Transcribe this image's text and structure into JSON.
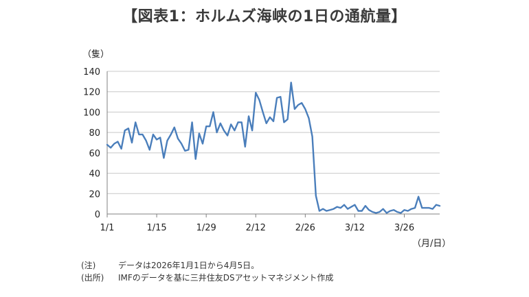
{
  "title": "【図表1：ホルムズ海峡の1日の通航量】",
  "y_unit": "（隻）",
  "x_unit": "（月/日）",
  "notes": [
    {
      "label": "(注)",
      "text": "データは2026年1月1日から4月5日。"
    },
    {
      "label": "(出所)",
      "text": "IMFのデータを基に三井住友DSアセットマネジメント作成"
    }
  ],
  "chart_data": {
    "type": "line",
    "title": "【図表1：ホルムズ海峡の1日の通航量】",
    "ylabel": "（隻）",
    "xlabel": "（月/日）",
    "ylim": [
      0,
      140
    ],
    "yticks": [
      0,
      20,
      40,
      60,
      80,
      100,
      120,
      140
    ],
    "xticks": [
      "1/1",
      "1/15",
      "1/29",
      "2/12",
      "2/26",
      "3/12",
      "3/26"
    ],
    "grid": true,
    "legend": "none",
    "colors": {
      "line": "#4a7ebb",
      "grid": "#c8c8c8",
      "axis": "#808080"
    },
    "x_start": "1/1",
    "x_end": "4/5",
    "series": [
      {
        "values": [
          68,
          65,
          69,
          71,
          64,
          82,
          84,
          70,
          90,
          78,
          78,
          72,
          63,
          78,
          73,
          75,
          55,
          72,
          78,
          85,
          74,
          69,
          62,
          63,
          90,
          54,
          79,
          69,
          86,
          86,
          100,
          80,
          89,
          82,
          77,
          88,
          82,
          90,
          90,
          66,
          96,
          82,
          119,
          112,
          100,
          89,
          95,
          91,
          114,
          115,
          90,
          93,
          129,
          103,
          107,
          109,
          103,
          94,
          76,
          18,
          3,
          5,
          3,
          4,
          5,
          7,
          6,
          9,
          5,
          7,
          9,
          3,
          3,
          8,
          4,
          2,
          1,
          2,
          5,
          1,
          3,
          4,
          2,
          1,
          4,
          3,
          5,
          6,
          17,
          6,
          6,
          6,
          5,
          9,
          8
        ]
      }
    ]
  }
}
